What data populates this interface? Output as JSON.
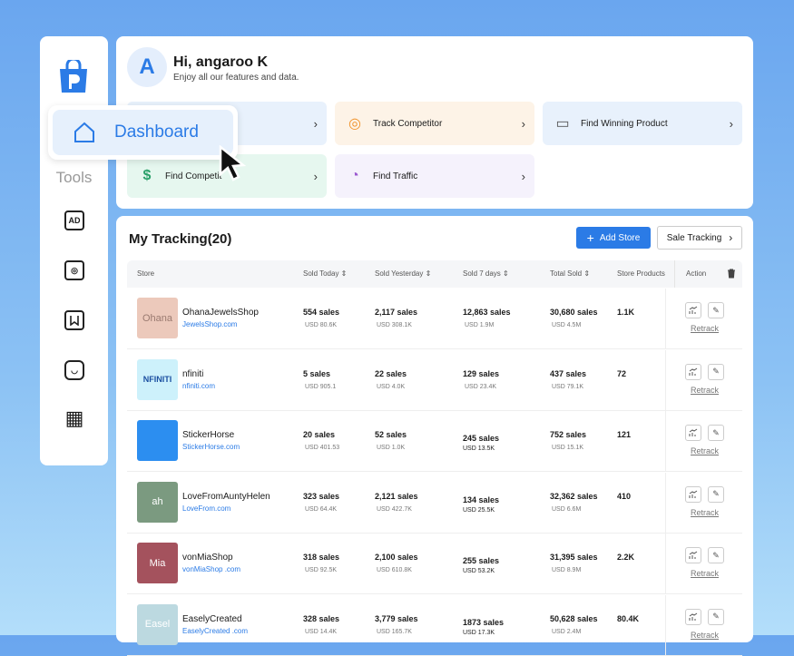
{
  "sidebar": {
    "tools_label": "Tools",
    "icons": [
      "ad-icon",
      "camera-icon",
      "bookmark-icon",
      "inbox-icon",
      "grid-icon"
    ]
  },
  "dashboard_popup": {
    "label": "Dashboard"
  },
  "header": {
    "avatar": "A",
    "greeting": "Hi, angaroo K",
    "subtitle": "Enjoy all our features and data.",
    "cards": [
      {
        "label": "",
        "color": "#e8f1fc"
      },
      {
        "label": "Track Competitor",
        "color": "#fdf3e7"
      },
      {
        "label": "Find Winning Product",
        "color": "#e8f1fc"
      },
      {
        "label": "Find Competit",
        "color": "#e6f7ef"
      },
      {
        "label": "Find Traffic",
        "color": "#f5f2fc"
      }
    ]
  },
  "tracking": {
    "title": "My Tracking(20)",
    "add_store": "Add Store",
    "sale_tracking": "Sale Tracking",
    "columns": [
      "Store",
      "Sold Today",
      "Sold Yesterday",
      "Sold 7 days",
      "Total Sold",
      "Store Products",
      "Action"
    ],
    "retrack": "Retrack",
    "rows": [
      {
        "name": "OhanaJewelsShop",
        "url": "JewelsShop.com",
        "logo": "Ohana",
        "logo_color": "#ecc9bb",
        "today": "554 sales",
        "today_usd": "USD 80.6K",
        "yesterday": "2,117 sales",
        "yesterday_usd": "USD 308.1K",
        "week": "12,863 sales",
        "week_usd": "USD 1.9M",
        "total": "30,680 sales",
        "total_usd": "USD 4.5M",
        "products": "1.1K"
      },
      {
        "name": "nfiniti",
        "url": "nfiniti.com",
        "logo": "NFINITI",
        "logo_color": "#cdf1fb",
        "today": "5 sales",
        "today_usd": "USD 905.1",
        "yesterday": "22 sales",
        "yesterday_usd": "USD 4.0K",
        "week": "129 sales",
        "week_usd": "USD 23.4K",
        "total": "437 sales",
        "total_usd": "USD 79.1K",
        "products": "72"
      },
      {
        "name": "StickerHorse",
        "url": "StickerHorse.com",
        "logo": "",
        "logo_color": "#2c8ef0",
        "today": "20 sales",
        "today_usd": "USD 401.53",
        "yesterday": "52 sales",
        "yesterday_usd": "USD 1.0K",
        "week": "245 sales",
        "week_usd": "USD 13.5K",
        "total": "752 sales",
        "total_usd": "USD 15.1K",
        "products": "121"
      },
      {
        "name": "LoveFromAuntyHelen",
        "url": "LoveFrom.com",
        "logo": "ah",
        "logo_color": "#7b9a80",
        "today": "323 sales",
        "today_usd": "USD 64.4K",
        "yesterday": "2,121 sales",
        "yesterday_usd": "USD 422.7K",
        "week": "134 sales",
        "week_usd": "USD 25.5K",
        "total": "32,362 sales",
        "total_usd": "USD 6.6M",
        "products": "410"
      },
      {
        "name": "vonMiaShop",
        "url": "vonMiaShop .com",
        "logo": "Mia",
        "logo_color": "#a4525d",
        "today": "318 sales",
        "today_usd": "USD 92.5K",
        "yesterday": "2,100 sales",
        "yesterday_usd": "USD 610.8K",
        "week": "255 sales",
        "week_usd": "USD 53.2K",
        "total": "31,395 sales",
        "total_usd": "USD 8.9M",
        "products": "2.2K"
      },
      {
        "name": "EaselyCreated",
        "url": "EaselyCreated .com",
        "logo": "Easel",
        "logo_color": "#bcd9e0",
        "today": "328 sales",
        "today_usd": "USD 14.4K",
        "yesterday": "3,779 sales",
        "yesterday_usd": "USD 165.7K",
        "week": "1873 sales",
        "week_usd": "USD 17.3K",
        "total": "50,628 sales",
        "total_usd": "USD 2.4M",
        "products": "80.4K"
      }
    ]
  }
}
